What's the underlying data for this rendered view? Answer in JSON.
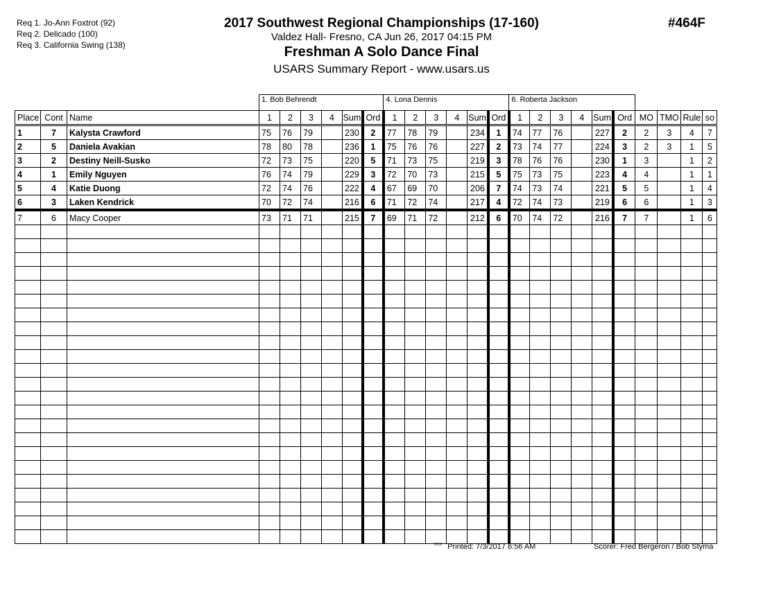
{
  "requirements": [
    "Req  1.  Jo-Ann Foxtrot (92)",
    "Req  2.  Delicado (100)",
    "Req  3.  California Swing (138)"
  ],
  "header": {
    "title": "2017 Southwest Regional Championships (17-160)",
    "venue": "Valdez Hall- Fresno, CA  Jun 26, 2017  04:15 PM",
    "event": "Freshman A Solo Dance Final",
    "report": "USARS Summary Report - www.usars.us",
    "event_number": "#464F"
  },
  "judges": [
    "1.  Bob Behrendt",
    "4.  Lona Dennis",
    "6.  Roberta Jackson"
  ],
  "columns": {
    "place": "Place",
    "cont": "Cont",
    "name": "Name",
    "marks": [
      "1",
      "2",
      "3",
      "4",
      "Sum",
      "Ord"
    ],
    "mo": "MO",
    "tmo": "TMO",
    "rule": "Rule",
    "so": "so"
  },
  "rows": [
    {
      "place": "1",
      "cont": "7",
      "name": "Kalysta Crawford",
      "j": [
        [
          "75",
          "76",
          "79",
          "",
          "230",
          "2"
        ],
        [
          "77",
          "78",
          "79",
          "",
          "234",
          "1"
        ],
        [
          "74",
          "77",
          "76",
          "",
          "227",
          "2"
        ]
      ],
      "mo": "2",
      "tmo": "3",
      "rule": "4",
      "so": "7",
      "bold": true
    },
    {
      "place": "2",
      "cont": "5",
      "name": "Daniela Avakian",
      "j": [
        [
          "78",
          "80",
          "78",
          "",
          "236",
          "1"
        ],
        [
          "75",
          "76",
          "76",
          "",
          "227",
          "2"
        ],
        [
          "73",
          "74",
          "77",
          "",
          "224",
          "3"
        ]
      ],
      "mo": "2",
      "tmo": "3",
      "rule": "1",
      "so": "5",
      "bold": true
    },
    {
      "place": "3",
      "cont": "2",
      "name": "Destiny Neill-Susko",
      "j": [
        [
          "72",
          "73",
          "75",
          "",
          "220",
          "5"
        ],
        [
          "71",
          "73",
          "75",
          "",
          "219",
          "3"
        ],
        [
          "78",
          "76",
          "76",
          "",
          "230",
          "1"
        ]
      ],
      "mo": "3",
      "tmo": "",
      "rule": "1",
      "so": "2",
      "bold": true
    },
    {
      "place": "4",
      "cont": "1",
      "name": "Emily Nguyen",
      "j": [
        [
          "76",
          "74",
          "79",
          "",
          "229",
          "3"
        ],
        [
          "72",
          "70",
          "73",
          "",
          "215",
          "5"
        ],
        [
          "75",
          "73",
          "75",
          "",
          "223",
          "4"
        ]
      ],
      "mo": "4",
      "tmo": "",
      "rule": "1",
      "so": "1",
      "bold": true
    },
    {
      "place": "5",
      "cont": "4",
      "name": "Katie Duong",
      "j": [
        [
          "72",
          "74",
          "76",
          "",
          "222",
          "4"
        ],
        [
          "67",
          "69",
          "70",
          "",
          "206",
          "7"
        ],
        [
          "74",
          "73",
          "74",
          "",
          "221",
          "5"
        ]
      ],
      "mo": "5",
      "tmo": "",
      "rule": "1",
      "so": "4",
      "bold": true
    },
    {
      "place": "6",
      "cont": "3",
      "name": "Laken Kendrick",
      "j": [
        [
          "70",
          "72",
          "74",
          "",
          "216",
          "6"
        ],
        [
          "71",
          "72",
          "74",
          "",
          "217",
          "4"
        ],
        [
          "72",
          "74",
          "73",
          "",
          "219",
          "6"
        ]
      ],
      "mo": "6",
      "tmo": "",
      "rule": "1",
      "so": "3",
      "bold": true
    },
    {
      "place": "7",
      "cont": "6",
      "name": "Macy Cooper",
      "j": [
        [
          "73",
          "71",
          "71",
          "",
          "215",
          "7"
        ],
        [
          "69",
          "71",
          "72",
          "",
          "212",
          "6"
        ],
        [
          "70",
          "74",
          "72",
          "",
          "216",
          "7"
        ]
      ],
      "mo": "7",
      "tmo": "",
      "rule": "1",
      "so": "6",
      "bold": false
    }
  ],
  "footer": {
    "code": "2212",
    "printed": "Printed:  7/3/2017  6:56 AM",
    "scorer": "Scorer:   Fred Bergeron / Bob Styma"
  }
}
